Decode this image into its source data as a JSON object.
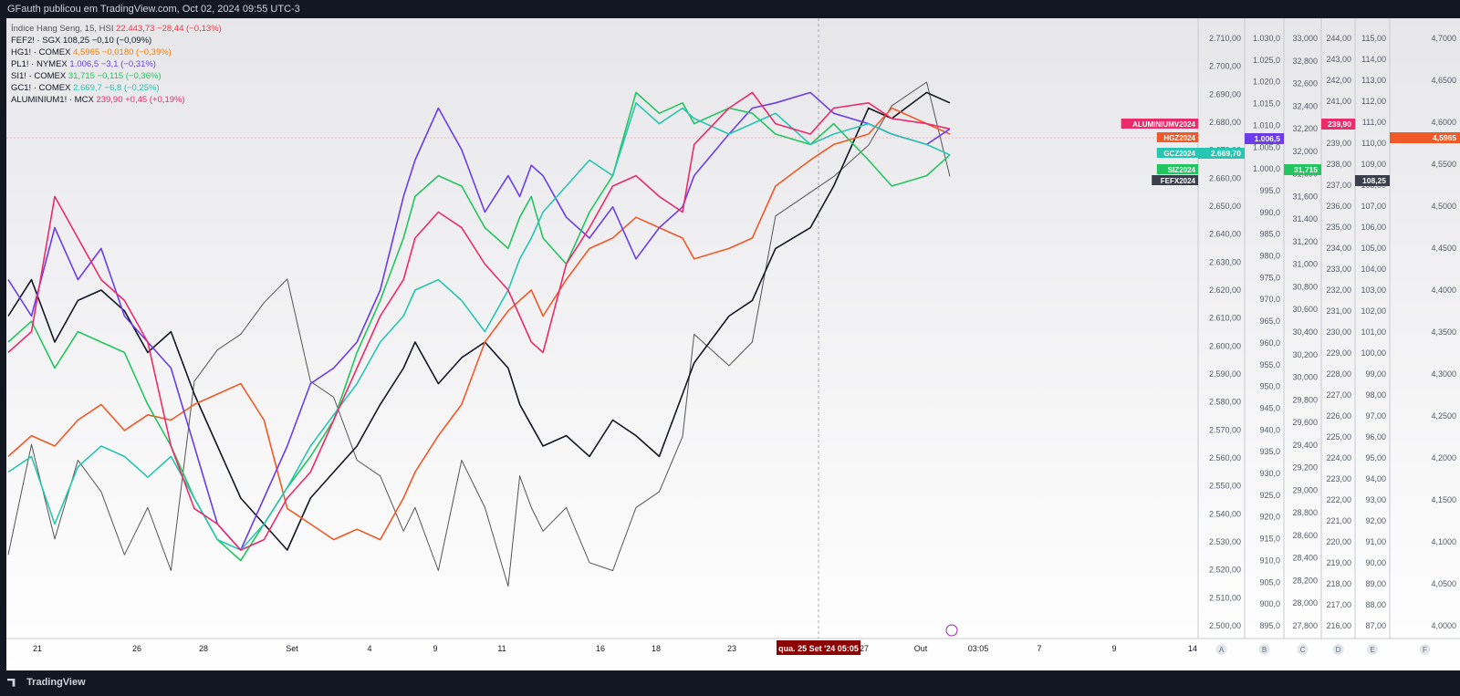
{
  "header": {
    "text": "GFauth publicou em TradingView.com, Oct 02, 2024 09:55 UTC-3"
  },
  "footer": {
    "brand": "TradingView"
  },
  "legend": [
    {
      "name": "Índice Hang Seng, 15, HSI",
      "value": "22.443,73",
      "change": "−28,44 (−0,13%)",
      "color": "#555555",
      "valueColor": "#f23645"
    },
    {
      "name": "FEF2! · SGX",
      "value": "108,25",
      "change": "−0,10 (−0,09%)",
      "color": "#131722",
      "valueColor": "#131722"
    },
    {
      "name": "HG1! · COMEX",
      "value": "4,5965",
      "change": "−0,0180 (−0,39%)",
      "color": "#131722",
      "valueColor": "#f57c00"
    },
    {
      "name": "PL1! · NYMEX",
      "value": "1.006,5",
      "change": "−3,1 (−0,31%)",
      "color": "#131722",
      "valueColor": "#6a3de8"
    },
    {
      "name": "SI1! · COMEX",
      "value": "31,715",
      "change": "−0,115 (−0,36%)",
      "color": "#131722",
      "valueColor": "#22c55e"
    },
    {
      "name": "GC1! · COMEX",
      "value": "2.669,7",
      "change": "−6,8 (−0,25%)",
      "color": "#131722",
      "valueColor": "#26c6b0"
    },
    {
      "name": "ALUMINIUM1! · MCX",
      "value": "239,90",
      "change": "+0,45 (+0,19%)",
      "color": "#131722",
      "valueColor": "#ec2b6b"
    }
  ],
  "series_tags": [
    {
      "label": "ALUMINIUMV2024",
      "color": "#ec2b6b"
    },
    {
      "label": "HGZ2024",
      "color": "#f05a28"
    },
    {
      "label": "GCZ2024",
      "color": "#26c6b0"
    },
    {
      "label": "SIZ2024",
      "color": "#22c55e"
    },
    {
      "label": "FEFX2024",
      "color": "#3b3f4c"
    }
  ],
  "price_tags": [
    {
      "axis": "A",
      "value": "2.669,70",
      "color": "#26c6b0"
    },
    {
      "axis": "B",
      "value": "1.006,5",
      "color": "#6a3de8"
    },
    {
      "axis": "C",
      "value": "31,715",
      "color": "#22c55e"
    },
    {
      "axis": "D",
      "value": "239,90",
      "color": "#ec2b6b"
    },
    {
      "axis": "E",
      "value": "108,25",
      "color": "#3b3f4c"
    },
    {
      "axis": "F",
      "value": "4,5965",
      "color": "#f05a28"
    }
  ],
  "crosshair_label": "qua. 25 Set '24   05:05",
  "chart_data": {
    "type": "line",
    "xlabel": "",
    "x_ticks": [
      "21",
      "26",
      "28",
      "Set",
      "4",
      "9",
      "11",
      "16",
      "18",
      "23",
      "25",
      "27",
      "Out",
      "03:05",
      "7",
      "9",
      "14"
    ],
    "axes": [
      {
        "id": "A",
        "ticks": [
          "2.710,00",
          "2.700,00",
          "2.690,00",
          "2.680,00",
          "2.670,00",
          "2.660,00",
          "2.650,00",
          "2.640,00",
          "2.630,00",
          "2.620,00",
          "2.610,00",
          "2.600,00",
          "2.590,00",
          "2.580,00",
          "2.570,00",
          "2.560,00",
          "2.550,00",
          "2.540,00",
          "2.530,00",
          "2.520,00",
          "2.510,00",
          "2.500,00"
        ]
      },
      {
        "id": "B",
        "ticks": [
          "1.030,0",
          "1.025,0",
          "1.020,0",
          "1.015,0",
          "1.010,0",
          "1.005,0",
          "1.000,0",
          "995,0",
          "990,0",
          "985,0",
          "980,0",
          "975,0",
          "970,0",
          "965,0",
          "960,0",
          "955,0",
          "950,0",
          "945,0",
          "940,0",
          "935,0",
          "930,0",
          "925,0",
          "920,0",
          "915,0",
          "910,0",
          "905,0",
          "900,0",
          "895,0"
        ]
      },
      {
        "id": "C",
        "ticks": [
          "33,000",
          "32,800",
          "32,600",
          "32,400",
          "32,200",
          "32,000",
          "31,800",
          "31,600",
          "31,400",
          "31,200",
          "31,000",
          "30,800",
          "30,600",
          "30,400",
          "30,200",
          "30,000",
          "29,800",
          "29,600",
          "29,400",
          "29,200",
          "29,000",
          "28,800",
          "28,600",
          "28,400",
          "28,200",
          "28,000",
          "27,800"
        ]
      },
      {
        "id": "D",
        "ticks": [
          "244,00",
          "243,00",
          "242,00",
          "241,00",
          "240,00",
          "239,00",
          "238,00",
          "237,00",
          "236,00",
          "235,00",
          "234,00",
          "233,00",
          "232,00",
          "231,00",
          "230,00",
          "229,00",
          "228,00",
          "227,00",
          "226,00",
          "225,00",
          "224,00",
          "223,00",
          "222,00",
          "221,00",
          "220,00",
          "219,00",
          "218,00",
          "217,00",
          "216,00"
        ]
      },
      {
        "id": "E",
        "ticks": [
          "115,00",
          "114,00",
          "113,00",
          "112,00",
          "111,00",
          "110,00",
          "109,00",
          "108,00",
          "107,00",
          "106,00",
          "105,00",
          "104,00",
          "103,00",
          "102,00",
          "101,00",
          "100,00",
          "99,00",
          "98,00",
          "97,00",
          "96,00",
          "95,00",
          "94,00",
          "93,00",
          "92,00",
          "91,00",
          "90,00",
          "89,00",
          "88,00",
          "87,00"
        ]
      },
      {
        "id": "F",
        "ticks": [
          "4,7000",
          "4,6500",
          "4,6000",
          "4,5500",
          "4,5000",
          "4,4500",
          "4,4000",
          "4,3500",
          "4,3000",
          "4,2500",
          "4,2000",
          "4,1500",
          "4,1000",
          "4,0500",
          "4,0000"
        ]
      }
    ],
    "series": [
      {
        "name": "Índice Hang Seng, 15, HSI",
        "color": "#555555",
        "x": [
          0,
          2,
          4,
          6,
          8,
          10,
          12,
          14,
          16,
          18,
          20,
          22,
          24,
          26,
          28,
          30,
          32,
          34,
          35,
          37,
          39,
          41,
          43,
          44,
          45,
          46,
          48,
          50,
          52,
          54,
          56,
          58,
          59,
          62,
          64,
          66,
          69,
          71,
          74,
          76,
          79,
          81
        ],
        "values": [
          530,
          600,
          540,
          590,
          570,
          530,
          560,
          520,
          640,
          660,
          670,
          690,
          705,
          640,
          630,
          590,
          580,
          545,
          560,
          520,
          590,
          560,
          510,
          580,
          560,
          545,
          560,
          525,
          520,
          560,
          570,
          605,
          670,
          650,
          665,
          745,
          760,
          770,
          790,
          815,
          830,
          770
        ]
      },
      {
        "name": "FEF2! · SGX",
        "color": "#131722",
        "x": [
          0,
          2,
          4,
          6,
          8,
          10,
          12,
          14,
          16,
          18,
          20,
          22,
          24,
          26,
          28,
          30,
          32,
          34,
          35,
          37,
          39,
          41,
          43,
          44,
          45,
          46,
          48,
          50,
          52,
          54,
          56,
          58,
          59,
          62,
          64,
          66,
          69,
          71,
          74,
          76,
          79,
          81
        ],
        "values": [
          0.55,
          0.62,
          0.5,
          0.58,
          0.6,
          0.56,
          0.48,
          0.52,
          0.4,
          0.3,
          0.2,
          0.15,
          0.1,
          0.2,
          0.25,
          0.3,
          0.38,
          0.45,
          0.5,
          0.42,
          0.47,
          0.5,
          0.45,
          0.38,
          0.34,
          0.3,
          0.32,
          0.28,
          0.35,
          0.32,
          0.28,
          0.4,
          0.46,
          0.55,
          0.58,
          0.68,
          0.72,
          0.8,
          0.95,
          0.93,
          0.98,
          0.96
        ]
      },
      {
        "name": "HG1! · COMEX",
        "color": "#f05a28",
        "x": [
          0,
          2,
          4,
          6,
          8,
          10,
          12,
          14,
          16,
          18,
          20,
          22,
          24,
          26,
          28,
          30,
          32,
          34,
          35,
          37,
          39,
          41,
          43,
          44,
          45,
          46,
          48,
          50,
          52,
          54,
          56,
          58,
          59,
          62,
          64,
          66,
          69,
          71,
          74,
          76,
          79,
          81
        ],
        "values": [
          0.28,
          0.32,
          0.3,
          0.35,
          0.38,
          0.33,
          0.36,
          0.35,
          0.38,
          0.4,
          0.42,
          0.35,
          0.18,
          0.15,
          0.12,
          0.14,
          0.12,
          0.2,
          0.25,
          0.32,
          0.38,
          0.5,
          0.56,
          0.58,
          0.6,
          0.55,
          0.62,
          0.68,
          0.7,
          0.74,
          0.72,
          0.7,
          0.66,
          0.68,
          0.7,
          0.8,
          0.85,
          0.88,
          0.9,
          0.95,
          0.92,
          0.9
        ]
      },
      {
        "name": "PL1! · NYMEX",
        "color": "#6a3de8",
        "x": [
          0,
          2,
          4,
          6,
          8,
          10,
          12,
          14,
          16,
          18,
          20,
          22,
          24,
          26,
          28,
          30,
          32,
          34,
          35,
          37,
          39,
          41,
          43,
          44,
          45,
          46,
          48,
          50,
          52,
          54,
          56,
          58,
          59,
          62,
          64,
          66,
          69,
          71,
          74,
          76,
          79,
          81
        ],
        "values": [
          0.62,
          0.55,
          0.72,
          0.62,
          0.68,
          0.55,
          0.5,
          0.45,
          0.3,
          0.15,
          0.1,
          0.2,
          0.3,
          0.42,
          0.45,
          0.5,
          0.6,
          0.78,
          0.85,
          0.95,
          0.87,
          0.75,
          0.82,
          0.78,
          0.84,
          0.82,
          0.74,
          0.7,
          0.76,
          0.66,
          0.72,
          0.76,
          0.82,
          0.9,
          0.95,
          0.96,
          0.98,
          0.94,
          0.92,
          0.9,
          0.88,
          0.91
        ]
      },
      {
        "name": "SI1! · COMEX",
        "color": "#22c55e",
        "x": [
          0,
          2,
          4,
          6,
          8,
          10,
          12,
          14,
          16,
          18,
          20,
          22,
          24,
          26,
          28,
          30,
          32,
          34,
          35,
          37,
          39,
          41,
          43,
          44,
          45,
          46,
          48,
          50,
          52,
          54,
          56,
          58,
          59,
          62,
          64,
          66,
          69,
          71,
          74,
          76,
          79,
          81
        ],
        "values": [
          0.5,
          0.54,
          0.45,
          0.52,
          0.5,
          0.48,
          0.38,
          0.3,
          0.2,
          0.12,
          0.08,
          0.15,
          0.22,
          0.28,
          0.35,
          0.48,
          0.58,
          0.7,
          0.78,
          0.82,
          0.8,
          0.72,
          0.68,
          0.74,
          0.78,
          0.7,
          0.65,
          0.75,
          0.82,
          0.98,
          0.94,
          0.96,
          0.92,
          0.95,
          0.94,
          0.9,
          0.88,
          0.92,
          0.85,
          0.8,
          0.82,
          0.86
        ]
      },
      {
        "name": "GC1! · COMEX",
        "color": "#26c6b0",
        "x": [
          0,
          2,
          4,
          6,
          8,
          10,
          12,
          14,
          16,
          18,
          20,
          22,
          24,
          26,
          28,
          30,
          32,
          34,
          35,
          37,
          39,
          41,
          43,
          44,
          45,
          46,
          48,
          50,
          52,
          54,
          56,
          58,
          59,
          62,
          64,
          66,
          69,
          71,
          74,
          76,
          79,
          81
        ],
        "values": [
          0.25,
          0.28,
          0.15,
          0.26,
          0.3,
          0.28,
          0.24,
          0.28,
          0.2,
          0.12,
          0.1,
          0.15,
          0.22,
          0.3,
          0.36,
          0.42,
          0.5,
          0.55,
          0.6,
          0.62,
          0.58,
          0.52,
          0.6,
          0.66,
          0.7,
          0.75,
          0.8,
          0.85,
          0.82,
          0.96,
          0.92,
          0.95,
          0.93,
          0.9,
          0.92,
          0.94,
          0.88,
          0.9,
          0.92,
          0.9,
          0.88,
          0.86
        ]
      },
      {
        "name": "ALUMINIUM1! · MCX",
        "color": "#ec2b6b",
        "x": [
          0,
          2,
          4,
          6,
          8,
          10,
          12,
          14,
          16,
          18,
          20,
          22,
          24,
          26,
          28,
          30,
          32,
          34,
          35,
          37,
          39,
          41,
          43,
          44,
          45,
          46,
          48,
          50,
          52,
          54,
          56,
          58,
          59,
          62,
          64,
          66,
          69,
          71,
          74,
          76,
          79,
          81
        ],
        "values": [
          0.48,
          0.52,
          0.78,
          0.7,
          0.62,
          0.58,
          0.5,
          0.3,
          0.18,
          0.15,
          0.1,
          0.12,
          0.2,
          0.25,
          0.35,
          0.45,
          0.55,
          0.62,
          0.7,
          0.75,
          0.72,
          0.65,
          0.6,
          0.55,
          0.5,
          0.48,
          0.65,
          0.72,
          0.8,
          0.82,
          0.78,
          0.75,
          0.88,
          0.95,
          0.98,
          0.92,
          0.9,
          0.95,
          0.96,
          0.93,
          0.92,
          0.91
        ]
      }
    ]
  }
}
